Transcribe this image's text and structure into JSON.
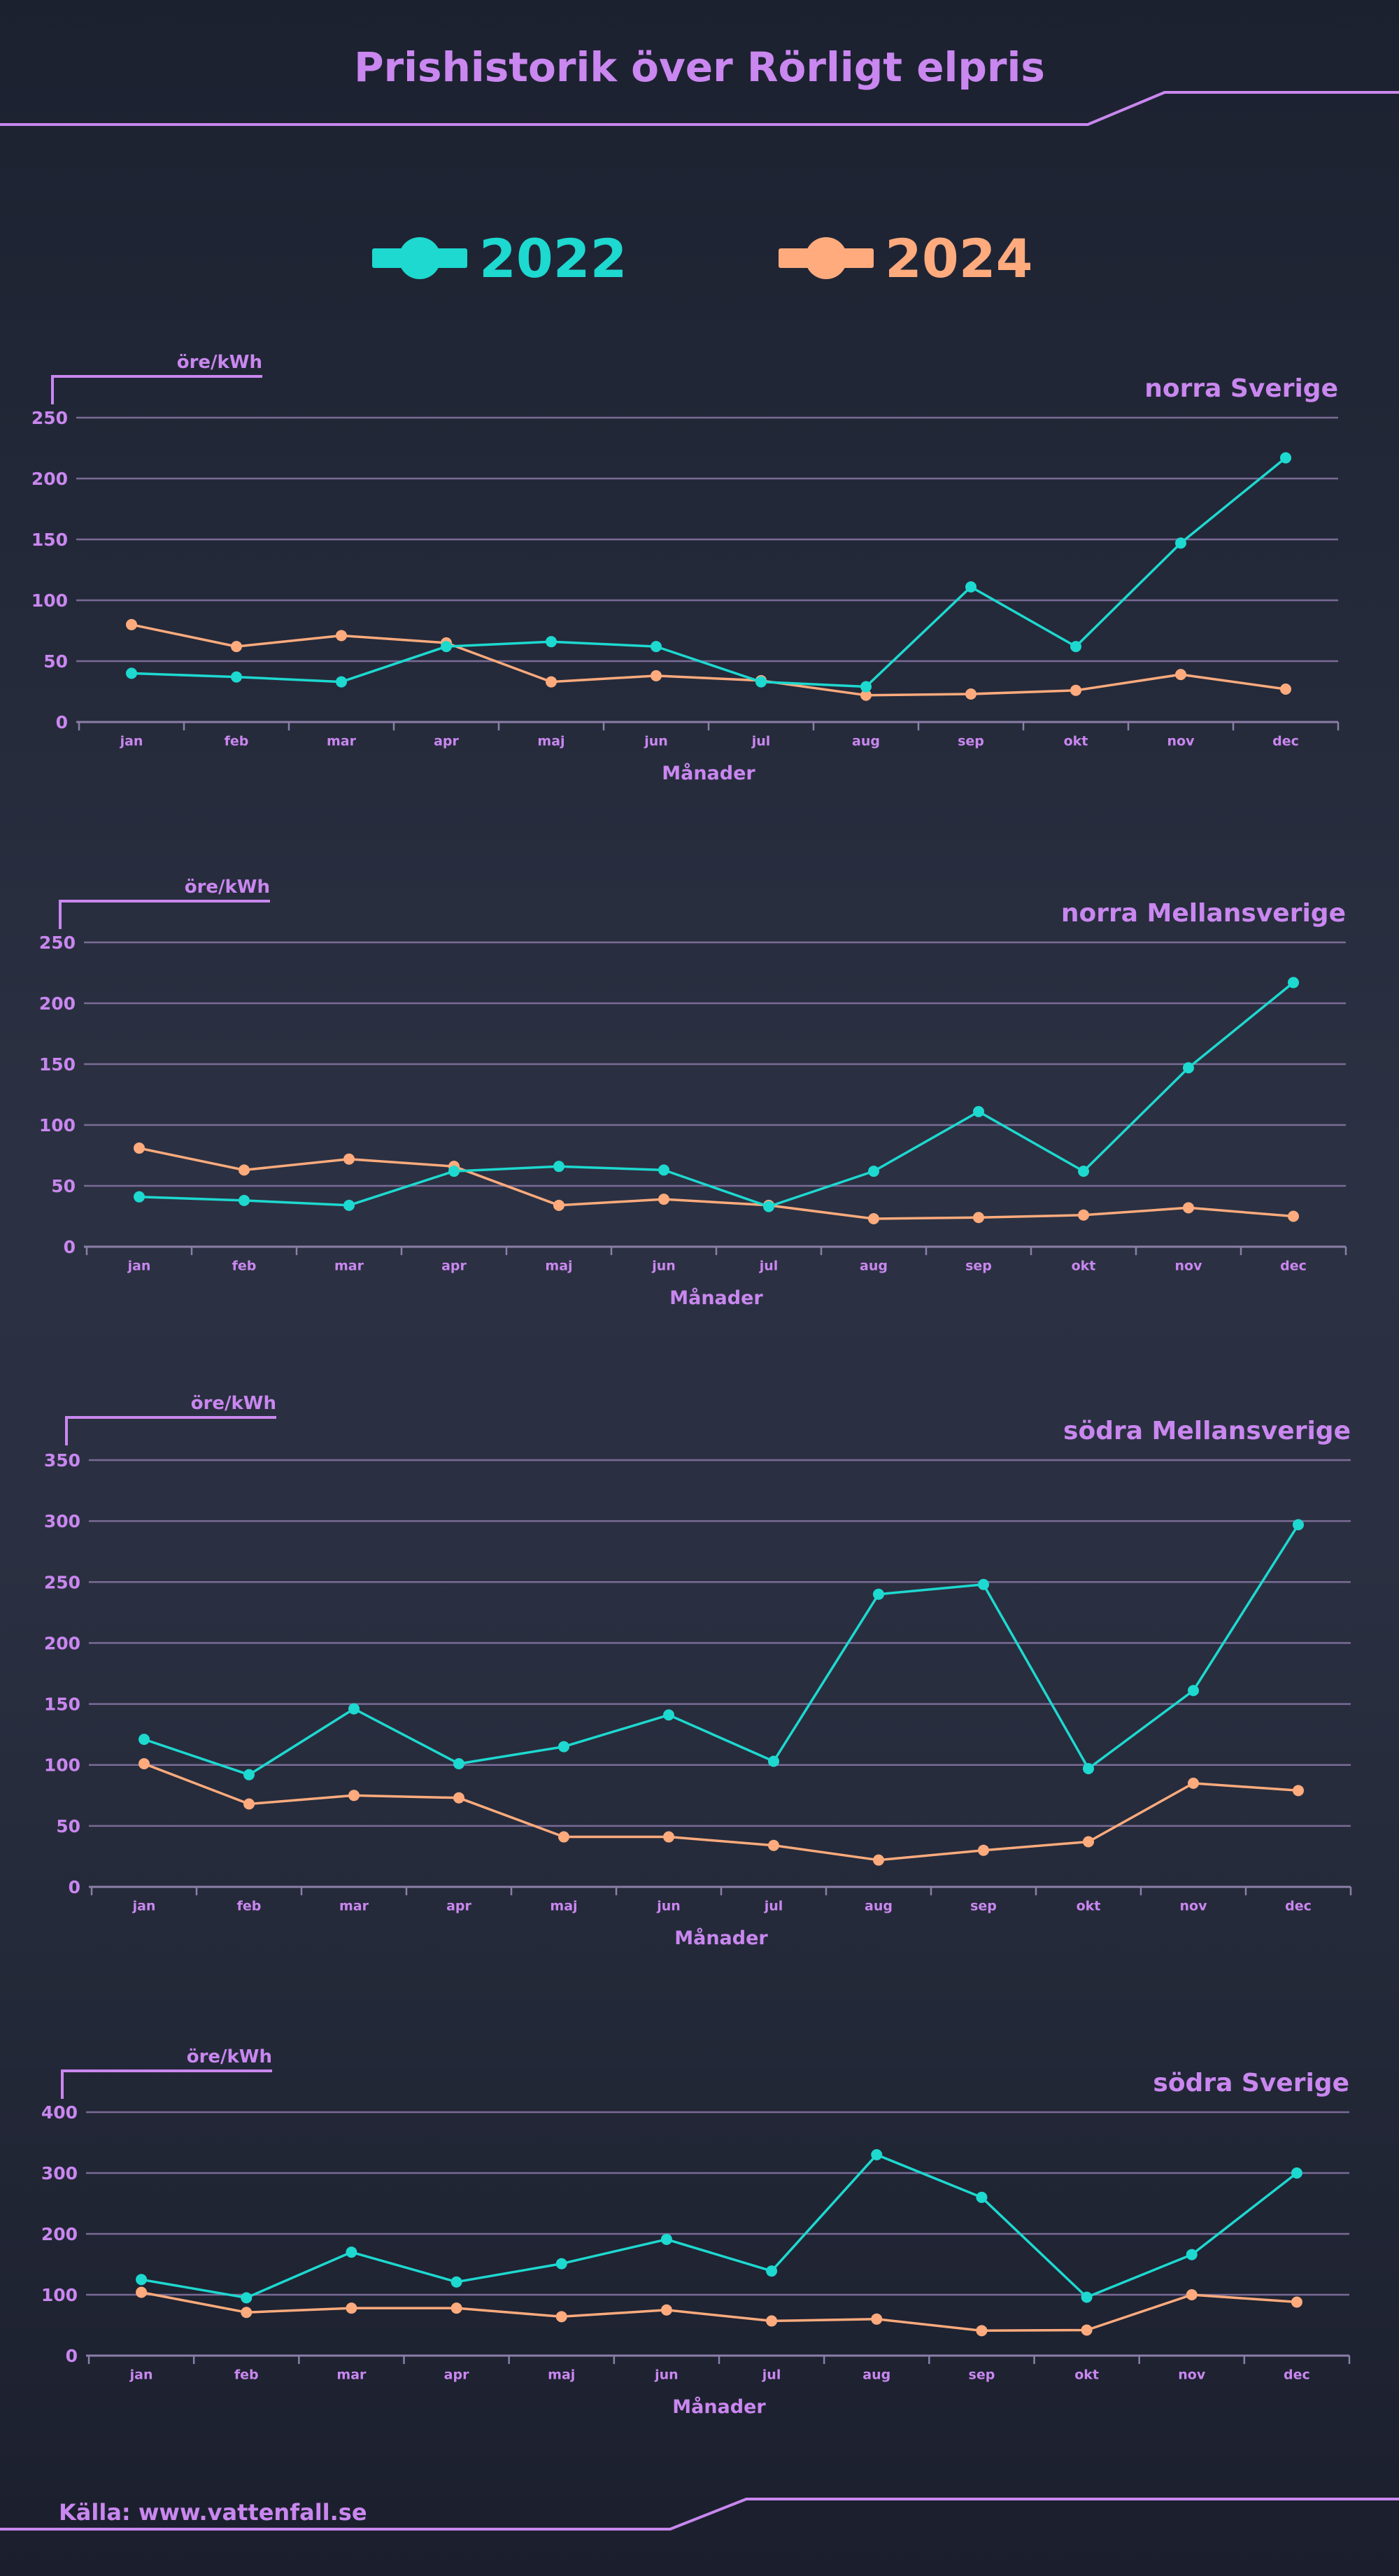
{
  "title": "Prishistorik över Rörligt elpris",
  "source": "Källa: www.vattenfall.se",
  "colors": {
    "accent": "#c987ef",
    "series_2022": "#1dd9d0",
    "series_2024": "#ffab7d",
    "grid": "#7a6b96"
  },
  "legend": [
    {
      "label": "2022",
      "color": "#1dd9d0"
    },
    {
      "label": "2024",
      "color": "#ffab7d"
    }
  ],
  "chart_data": [
    {
      "type": "line",
      "title": "norra Sverige",
      "ylabel": "öre/kWh",
      "xlabel": "Månader",
      "categories": [
        "jan",
        "feb",
        "mar",
        "apr",
        "maj",
        "jun",
        "jul",
        "aug",
        "sep",
        "okt",
        "nov",
        "dec"
      ],
      "ylim": [
        0,
        250
      ],
      "yticks": [
        0,
        50,
        100,
        150,
        200,
        250
      ],
      "grid": true,
      "series": [
        {
          "name": "2022",
          "color": "#1dd9d0",
          "values": [
            40,
            37,
            33,
            62,
            66,
            62,
            33,
            29,
            111,
            62,
            147,
            217
          ]
        },
        {
          "name": "2024",
          "color": "#ffab7d",
          "values": [
            80,
            62,
            71,
            65,
            33,
            38,
            34,
            22,
            23,
            26,
            39,
            27
          ]
        }
      ]
    },
    {
      "type": "line",
      "title": "norra Mellansverige",
      "ylabel": "öre/kWh",
      "xlabel": "Månader",
      "categories": [
        "jan",
        "feb",
        "mar",
        "apr",
        "maj",
        "jun",
        "jul",
        "aug",
        "sep",
        "okt",
        "nov",
        "dec"
      ],
      "ylim": [
        0,
        250
      ],
      "yticks": [
        0,
        50,
        100,
        150,
        200,
        250
      ],
      "grid": true,
      "series": [
        {
          "name": "2022",
          "color": "#1dd9d0",
          "values": [
            41,
            38,
            34,
            62,
            66,
            63,
            33,
            62,
            111,
            62,
            147,
            217
          ]
        },
        {
          "name": "2024",
          "color": "#ffab7d",
          "values": [
            81,
            63,
            72,
            66,
            34,
            39,
            34,
            23,
            24,
            26,
            32,
            25
          ]
        }
      ]
    },
    {
      "type": "line",
      "title": "södra Mellansverige",
      "ylabel": "öre/kWh",
      "xlabel": "Månader",
      "categories": [
        "jan",
        "feb",
        "mar",
        "apr",
        "maj",
        "jun",
        "jul",
        "aug",
        "sep",
        "okt",
        "nov",
        "dec"
      ],
      "ylim": [
        0,
        350
      ],
      "yticks": [
        0,
        50,
        100,
        150,
        200,
        250,
        300,
        350
      ],
      "grid": true,
      "series": [
        {
          "name": "2022",
          "color": "#1dd9d0",
          "values": [
            121,
            92,
            146,
            101,
            115,
            141,
            103,
            240,
            248,
            97,
            161,
            297
          ]
        },
        {
          "name": "2024",
          "color": "#ffab7d",
          "values": [
            101,
            68,
            75,
            73,
            41,
            41,
            34,
            22,
            30,
            37,
            85,
            79
          ]
        }
      ]
    },
    {
      "type": "line",
      "title": "södra Sverige",
      "ylabel": "öre/kWh",
      "xlabel": "Månader",
      "categories": [
        "jan",
        "feb",
        "mar",
        "apr",
        "maj",
        "jun",
        "jul",
        "aug",
        "sep",
        "okt",
        "nov",
        "dec"
      ],
      "ylim": [
        0,
        400
      ],
      "yticks": [
        0,
        100,
        200,
        300,
        400
      ],
      "grid": true,
      "series": [
        {
          "name": "2022",
          "color": "#1dd9d0",
          "values": [
            125,
            95,
            170,
            121,
            151,
            191,
            139,
            330,
            260,
            96,
            166,
            300
          ]
        },
        {
          "name": "2024",
          "color": "#ffab7d",
          "values": [
            104,
            71,
            78,
            78,
            64,
            75,
            57,
            60,
            41,
            42,
            100,
            88
          ]
        }
      ]
    }
  ]
}
